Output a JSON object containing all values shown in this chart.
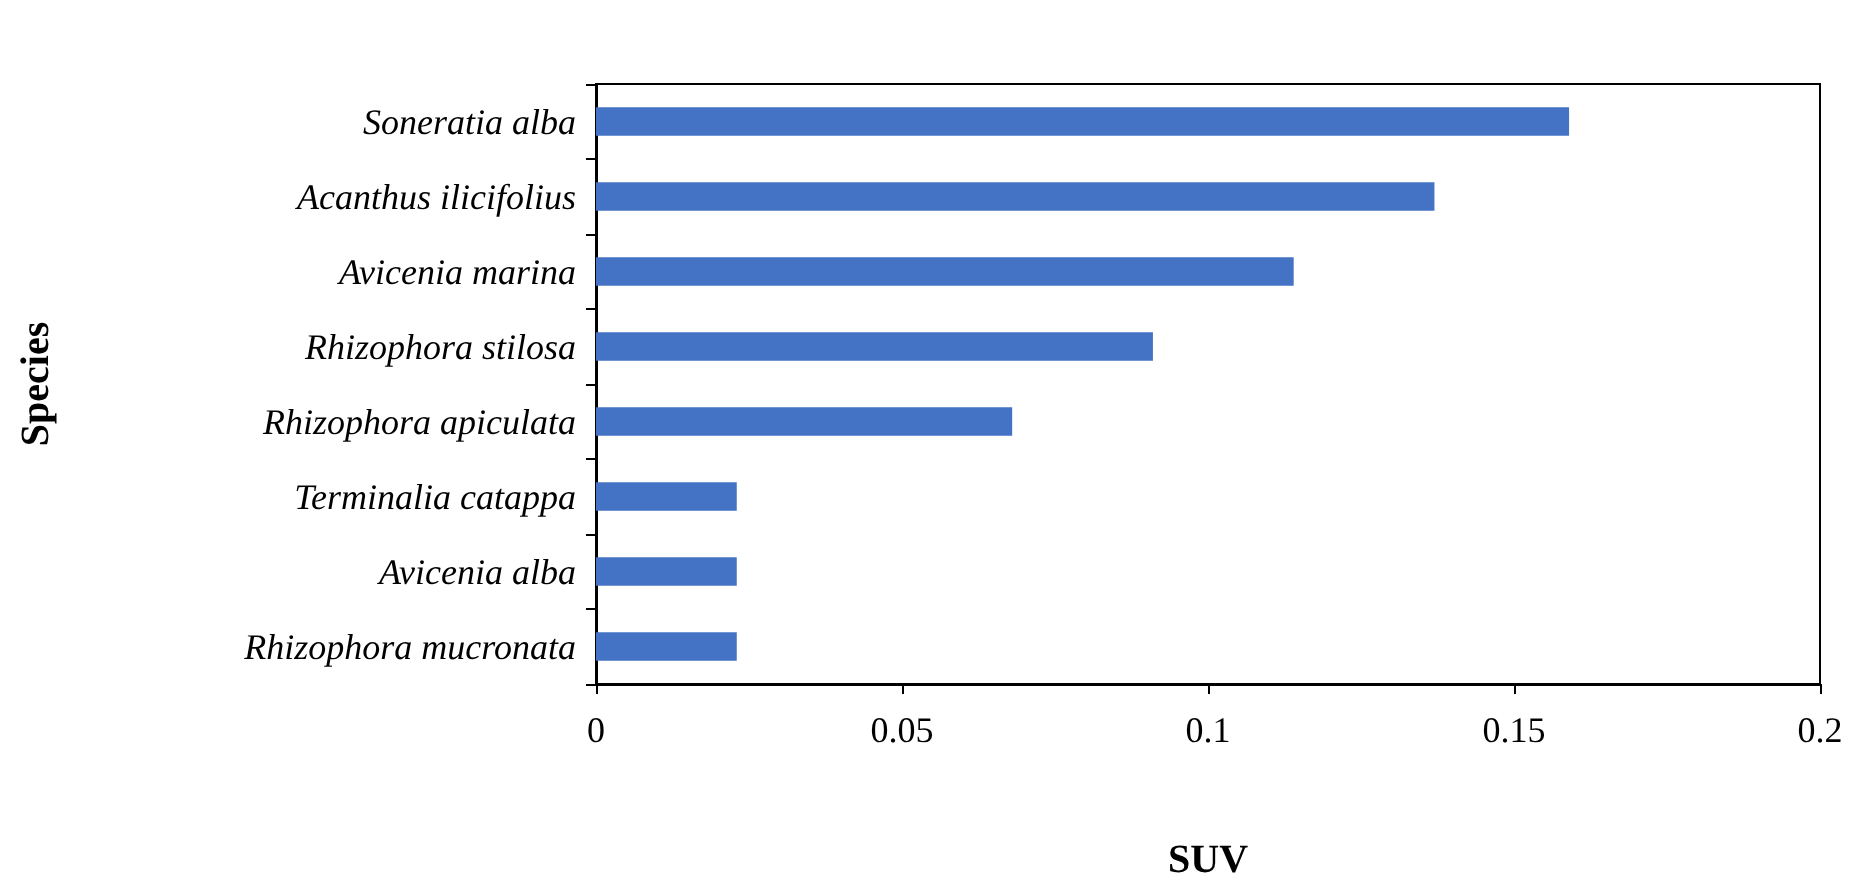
{
  "chart_data": {
    "type": "bar",
    "orientation": "horizontal",
    "xlabel": "SUV",
    "ylabel": "Species",
    "categories": [
      "Soneratia alba",
      "Acanthus ilicifolius",
      "Avicenia marina",
      "Rhizophora stilosa",
      "Rhizophora apiculata",
      "Terminalia catappa",
      "Avicenia alba",
      "Rhizophora mucronata"
    ],
    "values": [
      0.159,
      0.137,
      0.114,
      0.091,
      0.068,
      0.023,
      0.023,
      0.023
    ],
    "color": "#4472c4",
    "xlim": [
      0,
      0.2
    ],
    "xticks": [
      0,
      0.05,
      0.1,
      0.15,
      0.2
    ]
  }
}
